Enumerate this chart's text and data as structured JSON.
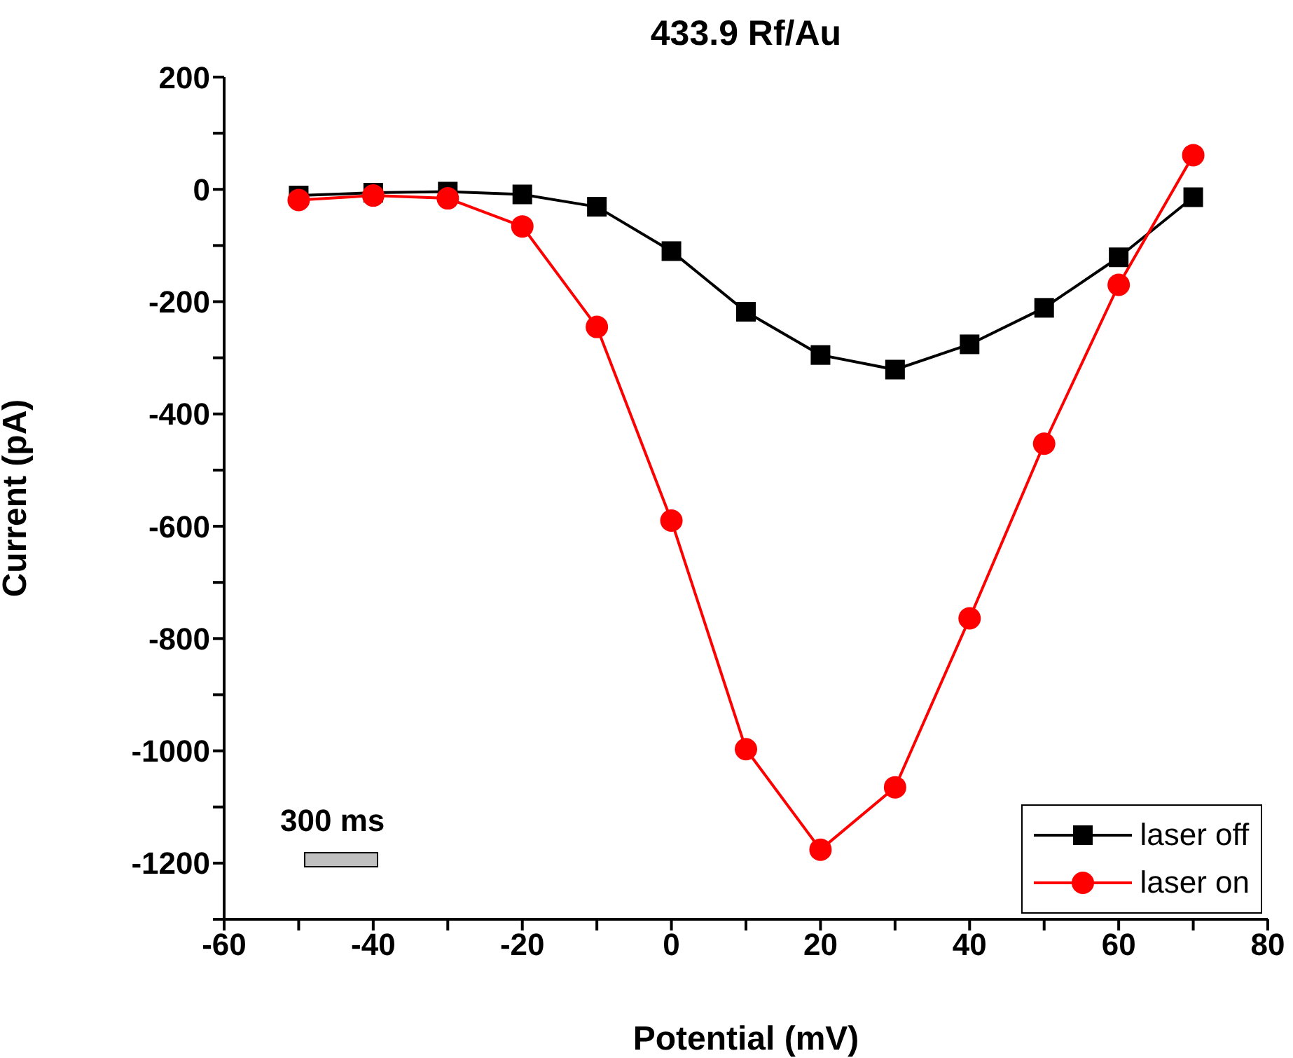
{
  "chart_data": {
    "type": "line",
    "title": "433.9 Rf/Au",
    "xlabel": "Potential (mV)",
    "ylabel": "Current (pA)",
    "x": [
      -50,
      -40,
      -30,
      -20,
      -10,
      0,
      10,
      20,
      30,
      40,
      50,
      60,
      70
    ],
    "series": [
      {
        "name": "laser off",
        "color": "#000000",
        "marker": "square",
        "values": [
          -11,
          -6,
          -4,
          -9,
          -31,
          -110,
          -218,
          -295,
          -321,
          -276,
          -211,
          -121,
          -14
        ]
      },
      {
        "name": "laser on",
        "color": "#ff0000",
        "marker": "circle",
        "values": [
          -19,
          -11,
          -16,
          -66,
          -245,
          -590,
          -997,
          -1176,
          -1065,
          -764,
          -453,
          -170,
          61
        ]
      }
    ],
    "xlim": [
      -60,
      80
    ],
    "xticks": [
      -60,
      {
        "value": -50,
        "label": null
      },
      -40,
      {
        "value": -30,
        "label": null
      },
      -20,
      {
        "value": -10,
        "label": null
      },
      0,
      {
        "value": 10,
        "label": null
      },
      20,
      {
        "value": 30,
        "label": null
      },
      40,
      {
        "value": 50,
        "label": null
      },
      60,
      {
        "value": 70,
        "label": null
      },
      80
    ],
    "ylim": [
      -1300,
      200
    ],
    "yticks": [
      {
        "value": -1300,
        "label": null
      },
      -1200,
      {
        "value": -1100,
        "label": null
      },
      -1000,
      {
        "value": -900,
        "label": null
      },
      -800,
      {
        "value": -700,
        "label": null
      },
      -600,
      {
        "value": -500,
        "label": null
      },
      -400,
      {
        "value": -300,
        "label": null
      },
      -200,
      {
        "value": -100,
        "label": null
      },
      0,
      {
        "value": 100,
        "label": null
      },
      200
    ],
    "legend": "bottom right",
    "grid": false,
    "line_style": "solid",
    "annotations": [
      "300 ms"
    ]
  }
}
